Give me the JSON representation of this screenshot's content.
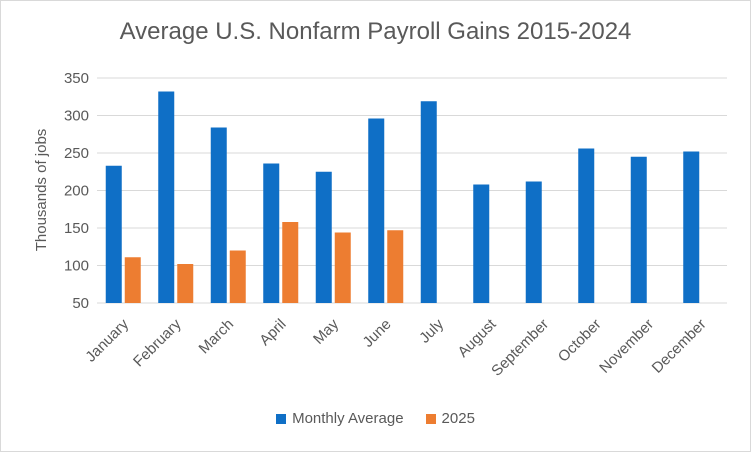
{
  "chart_data": {
    "type": "bar",
    "title": "Average U.S. Nonfarm Payroll Gains 2015-2024",
    "xlabel": "",
    "ylabel": "Thousands of jobs",
    "ylim": [
      50,
      350
    ],
    "yticks": [
      "50",
      "100",
      "150",
      "200",
      "250",
      "300",
      "350"
    ],
    "categories": [
      "January",
      "February",
      "March",
      "April",
      "May",
      "June",
      "July",
      "August",
      "September",
      "October",
      "November",
      "December"
    ],
    "series": [
      {
        "name": "Monthly Average",
        "color": "#0F6FC6",
        "values": [
          233,
          332,
          284,
          236,
          225,
          296,
          319,
          208,
          212,
          256,
          245,
          252
        ]
      },
      {
        "name": "2025",
        "color": "#ED7D31",
        "values": [
          111,
          102,
          120,
          158,
          144,
          147,
          null,
          null,
          null,
          null,
          null,
          null
        ]
      }
    ],
    "grid": true,
    "legend": "bottom"
  }
}
